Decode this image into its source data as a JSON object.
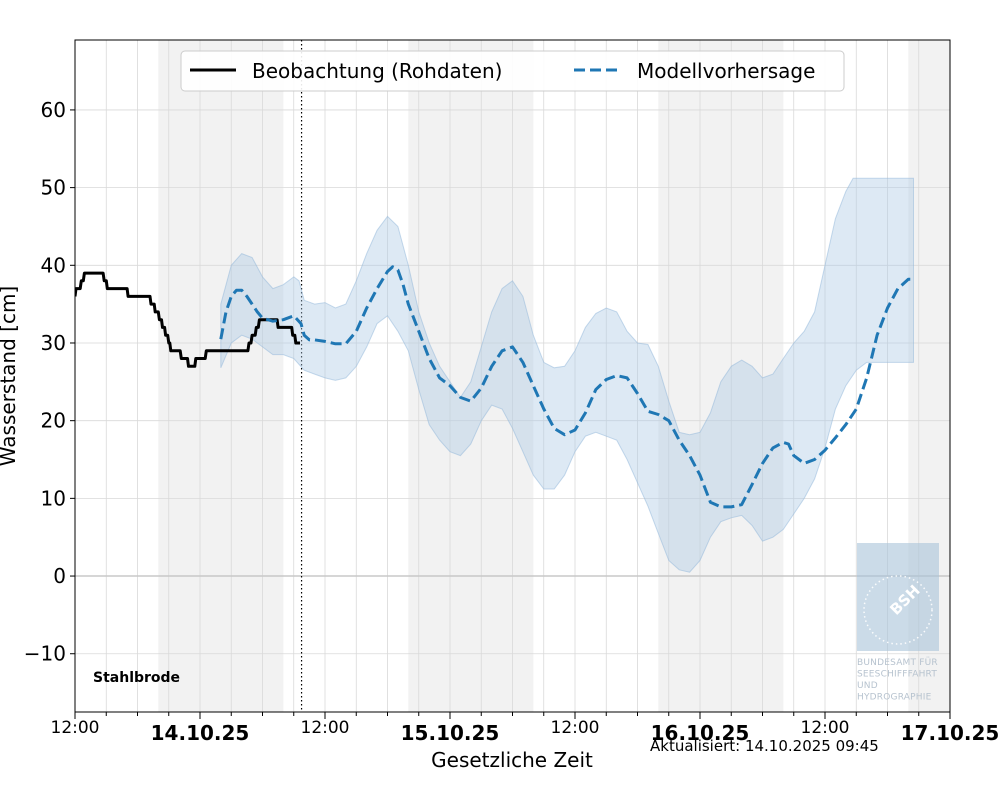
{
  "chart_data": {
    "type": "line",
    "xlabel": "Gesetzliche Zeit",
    "ylabel": "Wasserstand [cm]",
    "xlim": [
      0,
      84
    ],
    "ylim": [
      -17.5,
      69
    ],
    "y_ticks": [
      -10,
      0,
      10,
      20,
      30,
      40,
      50,
      60
    ],
    "x_ticks": [
      {
        "t": 0,
        "label": "12:00",
        "bold": false
      },
      {
        "t": 12,
        "label": "14.10.25",
        "bold": true
      },
      {
        "t": 24,
        "label": "12:00",
        "bold": false
      },
      {
        "t": 36,
        "label": "15.10.25",
        "bold": true
      },
      {
        "t": 48,
        "label": "12:00",
        "bold": false
      },
      {
        "t": 60,
        "label": "16.10.25",
        "bold": true
      },
      {
        "t": 72,
        "label": "12:00",
        "bold": false
      },
      {
        "t": 84,
        "label": "17.10.25",
        "bold": true
      }
    ],
    "grid": true,
    "legend_position": "top-center",
    "now_t": 21.75,
    "night_bands": [
      [
        8,
        20
      ],
      [
        32,
        44
      ],
      [
        56,
        68
      ],
      [
        80,
        84
      ]
    ],
    "station": "Stahlbrode",
    "series": [
      {
        "name": "Beobachtung (Rohdaten)",
        "style": "solid",
        "color": "#000000",
        "points": [
          [
            0,
            36
          ],
          [
            0.1,
            37
          ],
          [
            0.5,
            37
          ],
          [
            0.6,
            38
          ],
          [
            0.8,
            38
          ],
          [
            0.9,
            39
          ],
          [
            2.7,
            39
          ],
          [
            2.8,
            38
          ],
          [
            3,
            38
          ],
          [
            3.1,
            37
          ],
          [
            5,
            37
          ],
          [
            5.1,
            36
          ],
          [
            7.2,
            36
          ],
          [
            7.3,
            35
          ],
          [
            7.6,
            35
          ],
          [
            7.7,
            34
          ],
          [
            8,
            34
          ],
          [
            8.1,
            33
          ],
          [
            8.3,
            33
          ],
          [
            8.4,
            32
          ],
          [
            8.6,
            32
          ],
          [
            8.7,
            31
          ],
          [
            8.9,
            31
          ],
          [
            9,
            30
          ],
          [
            9.1,
            30
          ],
          [
            9.2,
            29
          ],
          [
            10.1,
            29
          ],
          [
            10.2,
            28
          ],
          [
            10.8,
            28
          ],
          [
            10.9,
            27
          ],
          [
            11.5,
            27
          ],
          [
            11.6,
            28
          ],
          [
            12.5,
            28
          ],
          [
            12.6,
            29
          ],
          [
            16.6,
            29
          ],
          [
            16.7,
            30
          ],
          [
            16.9,
            30
          ],
          [
            17,
            31
          ],
          [
            17.3,
            31
          ],
          [
            17.4,
            32
          ],
          [
            17.6,
            32
          ],
          [
            17.7,
            33
          ],
          [
            19.4,
            33
          ],
          [
            19.5,
            32
          ],
          [
            20.8,
            32
          ],
          [
            20.9,
            31
          ],
          [
            21.1,
            31
          ],
          [
            21.2,
            30
          ],
          [
            21.6,
            30
          ]
        ]
      },
      {
        "name": "Modellvorhersage",
        "style": "dashed",
        "color": "#1f77b4",
        "points": [
          [
            14,
            30.5
          ],
          [
            14.5,
            34
          ],
          [
            15,
            36
          ],
          [
            15.5,
            36.8
          ],
          [
            16,
            36.8
          ],
          [
            16.5,
            36
          ],
          [
            17,
            35
          ],
          [
            17.5,
            34
          ],
          [
            18,
            33.2
          ],
          [
            19,
            32.8
          ],
          [
            20,
            33
          ],
          [
            21,
            33.5
          ],
          [
            21.7,
            32.5
          ],
          [
            22,
            31
          ],
          [
            22.5,
            30.4
          ],
          [
            23,
            30.4
          ],
          [
            24,
            30.2
          ],
          [
            25,
            29.9
          ],
          [
            26,
            29.9
          ],
          [
            27,
            31.5
          ],
          [
            28,
            34.5
          ],
          [
            29,
            37
          ],
          [
            30,
            39.2
          ],
          [
            30.5,
            39.8
          ],
          [
            31,
            39.4
          ],
          [
            31.5,
            37.5
          ],
          [
            32,
            35
          ],
          [
            33,
            31.5
          ],
          [
            34,
            28
          ],
          [
            35,
            25.5
          ],
          [
            36,
            24.5
          ],
          [
            37,
            23
          ],
          [
            38,
            22.5
          ],
          [
            39,
            24.2
          ],
          [
            40,
            27
          ],
          [
            41,
            29
          ],
          [
            42,
            29.5
          ],
          [
            43,
            27.5
          ],
          [
            44,
            24.5
          ],
          [
            45,
            21.5
          ],
          [
            46,
            19
          ],
          [
            47,
            18.2
          ],
          [
            48,
            18.8
          ],
          [
            49,
            21
          ],
          [
            50,
            24
          ],
          [
            51,
            25.3
          ],
          [
            52,
            25.8
          ],
          [
            53,
            25.5
          ],
          [
            54,
            23.5
          ],
          [
            55,
            21.2
          ],
          [
            56,
            20.8
          ],
          [
            57,
            20
          ],
          [
            58,
            17.5
          ],
          [
            59,
            15.5
          ],
          [
            60,
            13
          ],
          [
            61,
            9.5
          ],
          [
            62,
            8.9
          ],
          [
            63,
            8.9
          ],
          [
            64,
            9.2
          ],
          [
            65,
            11.8
          ],
          [
            66,
            14.5
          ],
          [
            67,
            16.5
          ],
          [
            68,
            17.2
          ],
          [
            68.5,
            17
          ],
          [
            69,
            15.5
          ],
          [
            70,
            14.5
          ],
          [
            71,
            15
          ],
          [
            72,
            16.2
          ],
          [
            73,
            17.8
          ],
          [
            74,
            19.5
          ],
          [
            75,
            21.5
          ],
          [
            76,
            25.5
          ],
          [
            77,
            31
          ],
          [
            78,
            34.5
          ],
          [
            79,
            37
          ],
          [
            80,
            38.2
          ],
          [
            80.5,
            38.2
          ]
        ]
      }
    ],
    "uncertainty_band": {
      "color": "#1f77b4",
      "upper": [
        [
          14,
          35
        ],
        [
          15,
          40
        ],
        [
          16,
          41.5
        ],
        [
          17,
          41
        ],
        [
          18,
          38.5
        ],
        [
          19,
          37
        ],
        [
          20,
          37.5
        ],
        [
          21,
          38.5
        ],
        [
          21.5,
          38
        ],
        [
          22,
          35.5
        ],
        [
          23,
          35
        ],
        [
          24,
          35.2
        ],
        [
          25,
          34.5
        ],
        [
          26,
          35
        ],
        [
          27,
          38
        ],
        [
          28,
          41.5
        ],
        [
          29,
          44.5
        ],
        [
          30,
          46.3
        ],
        [
          31,
          45
        ],
        [
          32,
          40
        ],
        [
          33,
          34
        ],
        [
          34,
          30
        ],
        [
          35,
          27
        ],
        [
          36,
          25
        ],
        [
          37,
          23
        ],
        [
          38,
          25
        ],
        [
          39,
          29.5
        ],
        [
          40,
          34
        ],
        [
          41,
          37
        ],
        [
          42,
          38
        ],
        [
          43,
          36
        ],
        [
          44,
          31
        ],
        [
          45,
          27.5
        ],
        [
          46,
          26.8
        ],
        [
          47,
          27
        ],
        [
          48,
          29
        ],
        [
          49,
          32
        ],
        [
          50,
          33.8
        ],
        [
          51,
          34.5
        ],
        [
          52,
          34
        ],
        [
          53,
          31.5
        ],
        [
          54,
          30
        ],
        [
          55,
          29.8
        ],
        [
          56,
          27
        ],
        [
          57,
          22.5
        ],
        [
          58,
          18.5
        ],
        [
          59,
          18.2
        ],
        [
          60,
          18.5
        ],
        [
          61,
          21
        ],
        [
          62,
          25
        ],
        [
          63,
          27
        ],
        [
          64,
          27.8
        ],
        [
          65,
          27
        ],
        [
          66,
          25.5
        ],
        [
          67,
          26
        ],
        [
          68,
          28
        ],
        [
          69,
          30
        ],
        [
          70,
          31.5
        ],
        [
          71,
          34
        ],
        [
          72,
          40
        ],
        [
          73,
          46
        ],
        [
          74,
          49.5
        ],
        [
          74.7,
          51.2
        ],
        [
          80.5,
          51.2
        ]
      ],
      "lower": [
        [
          14,
          26.8
        ],
        [
          15,
          30
        ],
        [
          16,
          31
        ],
        [
          17,
          30.5
        ],
        [
          18,
          29.5
        ],
        [
          19,
          28.5
        ],
        [
          20,
          28.5
        ],
        [
          21,
          28
        ],
        [
          22,
          26.5
        ],
        [
          23,
          26
        ],
        [
          24,
          25.5
        ],
        [
          25,
          25.2
        ],
        [
          26,
          25.5
        ],
        [
          27,
          27
        ],
        [
          28,
          29.5
        ],
        [
          29,
          32.5
        ],
        [
          30,
          33.5
        ],
        [
          31,
          31.5
        ],
        [
          32,
          29
        ],
        [
          33,
          24
        ],
        [
          34,
          19.5
        ],
        [
          35,
          17.5
        ],
        [
          36,
          16
        ],
        [
          37,
          15.5
        ],
        [
          38,
          17
        ],
        [
          39,
          20
        ],
        [
          40,
          22
        ],
        [
          41,
          21.5
        ],
        [
          42,
          19
        ],
        [
          43,
          16
        ],
        [
          44,
          13
        ],
        [
          45,
          11.2
        ],
        [
          46,
          11.2
        ],
        [
          47,
          13
        ],
        [
          48,
          16
        ],
        [
          49,
          18
        ],
        [
          50,
          18.5
        ],
        [
          51,
          18
        ],
        [
          52,
          17.5
        ],
        [
          53,
          15
        ],
        [
          54,
          12
        ],
        [
          55,
          9
        ],
        [
          56,
          5.5
        ],
        [
          57,
          2
        ],
        [
          58,
          0.8
        ],
        [
          59,
          0.5
        ],
        [
          60,
          2
        ],
        [
          61,
          5
        ],
        [
          62,
          7
        ],
        [
          63,
          7.5
        ],
        [
          64,
          7.8
        ],
        [
          65,
          6.5
        ],
        [
          66,
          4.5
        ],
        [
          67,
          5
        ],
        [
          68,
          6
        ],
        [
          69,
          8
        ],
        [
          70,
          10
        ],
        [
          71,
          12.5
        ],
        [
          72,
          16.5
        ],
        [
          73,
          21.5
        ],
        [
          74,
          24.5
        ],
        [
          75,
          26.5
        ],
        [
          76,
          27.5
        ],
        [
          80.5,
          27.5
        ]
      ]
    }
  },
  "footer": {
    "updated": "Aktualisiert: 14.10.2025 09:45"
  },
  "logo": {
    "text": "BSH",
    "caption_lines": [
      "BUNDESAMT FÜR",
      "SEESCHIFFFAHRT",
      "UND",
      "HYDROGRAPHIE"
    ]
  },
  "colors": {
    "forecast": "#1f77b4",
    "band_fill": "#aecbe5",
    "night": "#f2f2f2",
    "grid": "#d9d9d9"
  }
}
